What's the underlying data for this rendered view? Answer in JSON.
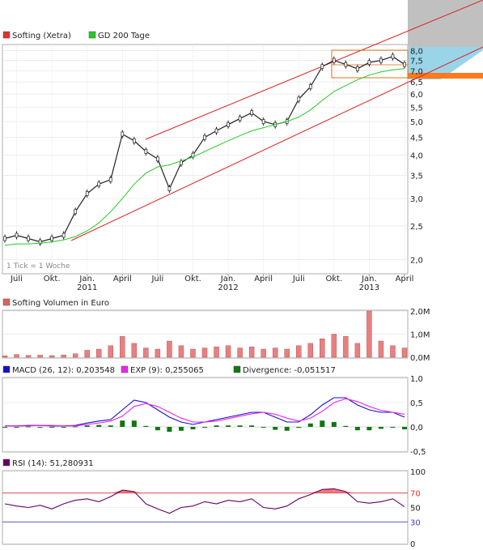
{
  "legend_main": [
    {
      "label": "Softing (Xetra)",
      "color": "#e03030"
    },
    {
      "label": "GD 200 Tage",
      "color": "#22cc22"
    }
  ],
  "tick_note": "1 Tick = 1 Woche",
  "x_labels": [
    {
      "label": "Juli",
      "year": ""
    },
    {
      "label": "Okt.",
      "year": ""
    },
    {
      "label": "Jan.",
      "year": "2011"
    },
    {
      "label": "April",
      "year": ""
    },
    {
      "label": "Juli",
      "year": ""
    },
    {
      "label": "Okt.",
      "year": ""
    },
    {
      "label": "Jan.",
      "year": "2012"
    },
    {
      "label": "April",
      "year": ""
    },
    {
      "label": "Juli",
      "year": ""
    },
    {
      "label": "Okt.",
      "year": ""
    },
    {
      "label": "Jan.",
      "year": "2013"
    },
    {
      "label": "April",
      "year": ""
    }
  ],
  "volume_legend": "Softing Volumen in Euro",
  "macd_legend": [
    {
      "label": "MACD (26, 12): 0,203548",
      "color": "#1010cc"
    },
    {
      "label": "EXP (9): 0,255065",
      "color": "#ee22ee"
    },
    {
      "label": "Divergence: -0,051517",
      "color": "#117711"
    }
  ],
  "rsi_legend": {
    "label": "RSI (14): 51,280931",
    "color": "#660066"
  },
  "chart_data": [
    {
      "type": "line",
      "name": "price",
      "scale": "log",
      "ylim": [
        1.85,
        8.2
      ],
      "yticks": [
        "2,0",
        "2,5",
        "3,0",
        "3,5",
        "4,0",
        "4,5",
        "5,0",
        "5,5",
        "6,0",
        "6,5",
        "7,0",
        "7,5",
        "8,0"
      ],
      "ytick_values": [
        2.0,
        2.5,
        3.0,
        3.5,
        4.0,
        4.5,
        5.0,
        5.5,
        6.0,
        6.5,
        7.0,
        7.5,
        8.0
      ],
      "x": [
        "2010-06",
        "2010-07",
        "2010-08",
        "2010-09",
        "2010-10",
        "2010-11",
        "2010-12",
        "2011-01",
        "2011-02",
        "2011-03",
        "2011-04",
        "2011-05",
        "2011-06",
        "2011-07",
        "2011-08",
        "2011-09",
        "2011-10",
        "2011-11",
        "2011-12",
        "2012-01",
        "2012-02",
        "2012-03",
        "2012-04",
        "2012-05",
        "2012-06",
        "2012-07",
        "2012-08",
        "2012-09",
        "2012-10",
        "2012-11",
        "2012-12",
        "2013-01",
        "2013-02",
        "2013-03",
        "2013-04"
      ],
      "series": [
        {
          "name": "Softing (Xetra)",
          "values": [
            2.3,
            2.35,
            2.3,
            2.25,
            2.3,
            2.35,
            2.75,
            3.1,
            3.3,
            3.4,
            4.6,
            4.4,
            4.1,
            3.9,
            3.2,
            3.8,
            4.0,
            4.5,
            4.7,
            4.9,
            5.1,
            5.3,
            5.0,
            4.9,
            5.0,
            5.8,
            6.3,
            7.2,
            7.5,
            7.3,
            7.1,
            7.4,
            7.5,
            7.7,
            7.3
          ]
        },
        {
          "name": "GD 200 Tage",
          "values": [
            2.2,
            2.22,
            2.22,
            2.23,
            2.25,
            2.28,
            2.33,
            2.42,
            2.55,
            2.75,
            3.0,
            3.3,
            3.55,
            3.7,
            3.75,
            3.85,
            3.95,
            4.1,
            4.25,
            4.4,
            4.55,
            4.7,
            4.8,
            4.9,
            5.0,
            5.15,
            5.4,
            5.75,
            6.1,
            6.35,
            6.6,
            6.8,
            6.95,
            7.05,
            7.1
          ]
        }
      ]
    },
    {
      "type": "bar",
      "name": "volume",
      "yticks": [
        "2,0M",
        "1,0M",
        "0,0M"
      ],
      "ylim": [
        0,
        2000000
      ],
      "values": [
        60000,
        120000,
        80000,
        90000,
        70000,
        100000,
        150000,
        300000,
        350000,
        500000,
        900000,
        600000,
        400000,
        350000,
        700000,
        500000,
        350000,
        400000,
        450000,
        500000,
        400000,
        450000,
        350000,
        400000,
        350000,
        500000,
        600000,
        800000,
        1000000,
        900000,
        600000,
        2000000,
        700000,
        500000,
        400000
      ]
    },
    {
      "type": "line",
      "name": "macd",
      "ylim": [
        -0.5,
        1.0
      ],
      "yticks": [
        "1,0",
        "0,5",
        "0,0",
        "-0,5"
      ],
      "series": [
        {
          "name": "MACD (26, 12)",
          "values": [
            0.02,
            0.02,
            0.03,
            0.03,
            0.02,
            0.02,
            0.03,
            0.08,
            0.12,
            0.15,
            0.35,
            0.55,
            0.5,
            0.35,
            0.2,
            0.1,
            0.05,
            0.1,
            0.15,
            0.2,
            0.25,
            0.3,
            0.3,
            0.2,
            0.1,
            0.1,
            0.25,
            0.45,
            0.6,
            0.6,
            0.45,
            0.35,
            0.3,
            0.3,
            0.2
          ]
        },
        {
          "name": "EXP (9)",
          "values": [
            0.02,
            0.02,
            0.02,
            0.03,
            0.03,
            0.02,
            0.02,
            0.05,
            0.08,
            0.12,
            0.22,
            0.42,
            0.48,
            0.42,
            0.3,
            0.18,
            0.1,
            0.1,
            0.12,
            0.17,
            0.22,
            0.27,
            0.3,
            0.26,
            0.18,
            0.12,
            0.18,
            0.32,
            0.5,
            0.58,
            0.52,
            0.42,
            0.34,
            0.3,
            0.26
          ]
        },
        {
          "name": "Divergence",
          "values": [
            0.0,
            0.0,
            0.01,
            0.0,
            -0.01,
            0.0,
            0.01,
            0.03,
            0.04,
            0.03,
            0.13,
            0.13,
            0.02,
            -0.07,
            -0.1,
            -0.08,
            -0.05,
            0.0,
            0.03,
            0.03,
            0.03,
            0.03,
            0.0,
            -0.06,
            -0.08,
            -0.02,
            0.07,
            0.13,
            0.1,
            0.02,
            -0.07,
            -0.07,
            -0.04,
            0.0,
            -0.05
          ]
        }
      ]
    },
    {
      "type": "line",
      "name": "rsi",
      "ylim": [
        0,
        100
      ],
      "yticks": [
        "100",
        "70",
        "50",
        "30",
        "0"
      ],
      "levels": [
        70,
        30
      ],
      "series": [
        {
          "name": "RSI (14)",
          "values": [
            55,
            52,
            50,
            53,
            48,
            55,
            60,
            62,
            58,
            65,
            74,
            72,
            55,
            48,
            42,
            50,
            52,
            58,
            55,
            60,
            58,
            62,
            50,
            48,
            52,
            62,
            68,
            75,
            76,
            72,
            58,
            56,
            58,
            62,
            51
          ]
        }
      ]
    }
  ]
}
